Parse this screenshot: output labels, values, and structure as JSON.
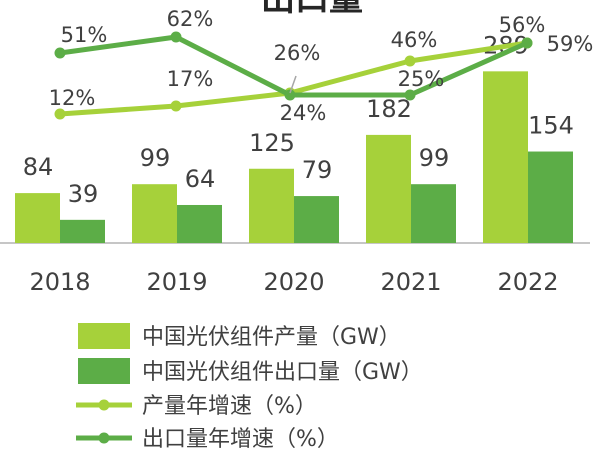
{
  "colors": {
    "production": "#a6d13a",
    "export": "#5cad47",
    "axis": "#8c8c8c",
    "text": "#404040",
    "callout": "#a6a6a6"
  },
  "chart_data": {
    "type": "bar",
    "title": "出口量",
    "categories": [
      "2018",
      "2019",
      "2020",
      "2021",
      "2022"
    ],
    "series": [
      {
        "name": "中国光伏组件产量（GW）",
        "kind": "bar",
        "values": [
          84,
          99,
          125,
          182,
          289
        ]
      },
      {
        "name": "中国光伏组件出口量（GW）",
        "kind": "bar",
        "values": [
          39,
          64,
          79,
          99,
          154
        ]
      },
      {
        "name": "产量年增速（%）",
        "kind": "line",
        "values": [
          12,
          17,
          26,
          46,
          56
        ],
        "labels": [
          "12%",
          "17%",
          "26%",
          "46%",
          "56%"
        ]
      },
      {
        "name": "出口量年增速（%）",
        "kind": "line",
        "values": [
          51,
          62,
          24,
          25,
          59
        ],
        "labels": [
          "51%",
          "62%",
          "24%",
          "25%",
          "59%"
        ]
      }
    ],
    "ylim_bars": [
      0,
      310
    ],
    "ylim_lines": [
      0,
      80
    ],
    "grid": false,
    "legend_position": "bottom"
  }
}
